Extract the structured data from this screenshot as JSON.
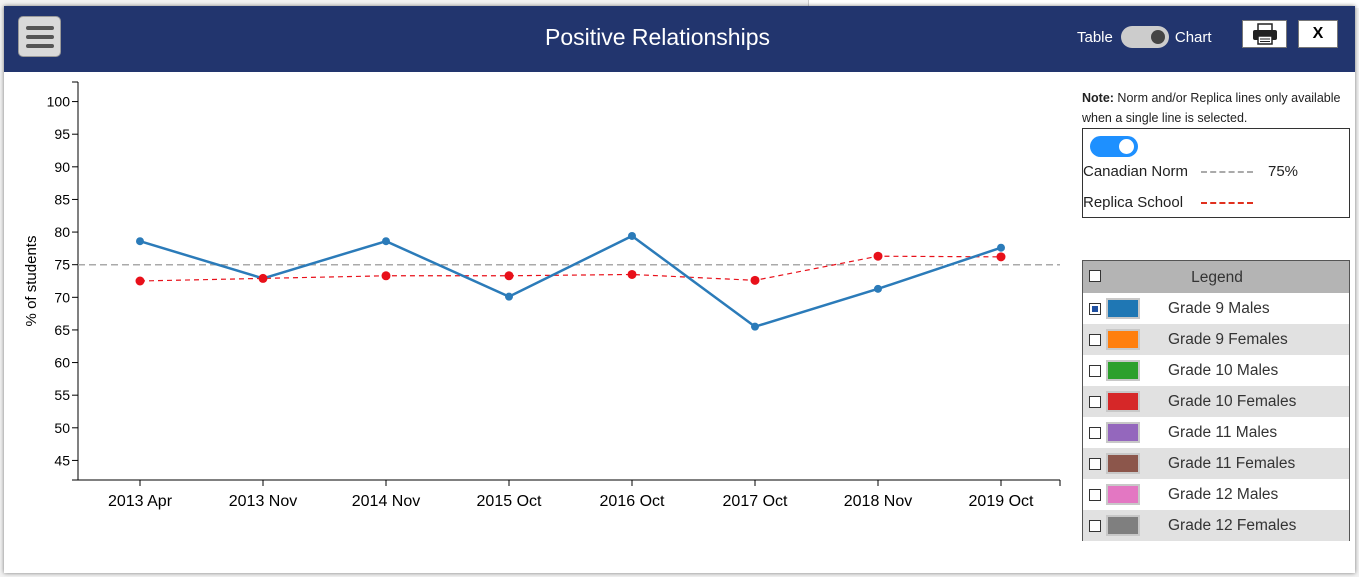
{
  "header": {
    "title": "Positive Relationships",
    "toggle_left": "Table",
    "toggle_right": "Chart",
    "close_label": "X"
  },
  "note": {
    "bold": "Note:",
    "text": " Norm and/or Replica lines only available when a single line is selected."
  },
  "norm_panel": {
    "canadian_norm_label": "Canadian Norm",
    "canadian_norm_value": "75%",
    "replica_label": "Replica School"
  },
  "legend": {
    "title": "Legend",
    "items": [
      {
        "label": "Grade 9 Males",
        "color": "#1f77b4",
        "checked": true
      },
      {
        "label": "Grade 9 Females",
        "color": "#ff7f0e",
        "checked": false
      },
      {
        "label": "Grade 10 Males",
        "color": "#2ca02c",
        "checked": false
      },
      {
        "label": "Grade 10 Females",
        "color": "#d62728",
        "checked": false
      },
      {
        "label": "Grade 11 Males",
        "color": "#9467bd",
        "checked": false
      },
      {
        "label": "Grade 11 Females",
        "color": "#8c564b",
        "checked": false
      },
      {
        "label": "Grade 12 Males",
        "color": "#e377c2",
        "checked": false
      },
      {
        "label": "Grade 12 Females",
        "color": "#7f7f7f",
        "checked": false
      }
    ]
  },
  "chart_data": {
    "type": "line",
    "ylabel": "% of students",
    "ylim": [
      42,
      103
    ],
    "yticks": [
      45,
      50,
      55,
      60,
      65,
      70,
      75,
      80,
      85,
      90,
      95,
      100
    ],
    "categories": [
      "2013 Apr",
      "2013 Nov",
      "2014 Nov",
      "2015 Oct",
      "2016 Oct",
      "2017 Oct",
      "2018 Nov",
      "2019 Oct"
    ],
    "series": [
      {
        "name": "Grade 9 Males",
        "color": "#2b7bb9",
        "values": [
          78.6,
          72.9,
          78.6,
          70.1,
          79.4,
          65.5,
          71.3,
          77.6
        ]
      },
      {
        "color": "#e8101a",
        "dashed": true,
        "values": [
          72.5,
          72.9,
          73.3,
          73.3,
          73.5,
          72.6,
          76.3,
          76.2
        ]
      }
    ],
    "norm_line": {
      "value": 75,
      "color": "#aaaaaa"
    }
  }
}
